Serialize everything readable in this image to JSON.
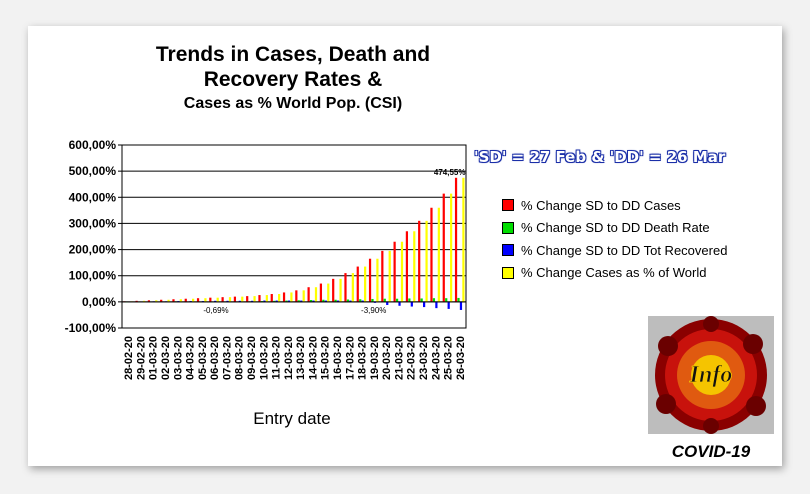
{
  "chart_data": {
    "type": "bar",
    "title_line1": "Trends in Cases, Death and",
    "title_line2": "Recovery Rates &",
    "title_line3": "Cases as % World Pop. (CSI)",
    "date_note": "'SD' = 27 Feb & 'DD' = 26 Mar",
    "xlabel": "Entry date",
    "ylabel": "",
    "ylim": [
      -100,
      600
    ],
    "yticks": [
      "600,00%",
      "500,00%",
      "400,00%",
      "300,00%",
      "200,00%",
      "100,00%",
      "0,00%",
      "-100,00%"
    ],
    "grid": true,
    "legend_placement": "right",
    "categories": [
      "28-02-20",
      "29-02-20",
      "01-03-20",
      "02-03-20",
      "03-03-20",
      "04-03-20",
      "05-03-20",
      "06-03-20",
      "07-03-20",
      "08-03-20",
      "09-03-20",
      "10-03-20",
      "11-03-20",
      "12-03-20",
      "13-03-20",
      "14-03-20",
      "15-03-20",
      "16-03-20",
      "17-03-20",
      "18-03-20",
      "19-03-20",
      "20-03-20",
      "21-03-20",
      "22-03-20",
      "23-03-20",
      "24-03-20",
      "25-03-20",
      "26-03-20"
    ],
    "series": [
      {
        "name": "% Change SD to DD Cases",
        "color": "#ff0000",
        "values": [
          2,
          4,
          6,
          8,
          10,
          12,
          14,
          16,
          18,
          20,
          22,
          26,
          30,
          36,
          44,
          56,
          70,
          88,
          110,
          135,
          165,
          195,
          230,
          270,
          310,
          360,
          414,
          474.55
        ]
      },
      {
        "name": "% Change SD to DD Death Rate",
        "color": "#00dd00",
        "values": [
          0,
          0.5,
          1,
          1.5,
          2,
          1,
          0.5,
          -0.69,
          0.5,
          1,
          2,
          3,
          4,
          5,
          6,
          7,
          8,
          8,
          9,
          10,
          11,
          12,
          12,
          13,
          13,
          14,
          14,
          15
        ]
      },
      {
        "name": "% Change SD to DD Tot Recovered",
        "color": "#0000ff",
        "values": [
          1,
          1,
          2,
          2,
          3,
          3,
          3,
          4,
          4,
          4,
          4,
          5,
          5,
          5,
          5,
          5,
          5,
          5,
          5,
          5,
          -3.9,
          -12,
          -15,
          -18,
          -20,
          -24,
          -27,
          -31
        ]
      },
      {
        "name": "% Change Cases as % of World",
        "color": "#ffff00",
        "values": [
          2,
          4,
          6,
          8,
          10,
          12,
          14,
          16,
          18,
          20,
          22,
          26,
          30,
          36,
          44,
          56,
          70,
          88,
          110,
          135,
          165,
          195,
          230,
          270,
          310,
          360,
          414,
          474.55
        ]
      }
    ],
    "annotations": [
      "474,55%",
      "-0,69%",
      "-3,90%"
    ]
  },
  "badge": {
    "label": "Info",
    "caption": "COVID-19"
  }
}
